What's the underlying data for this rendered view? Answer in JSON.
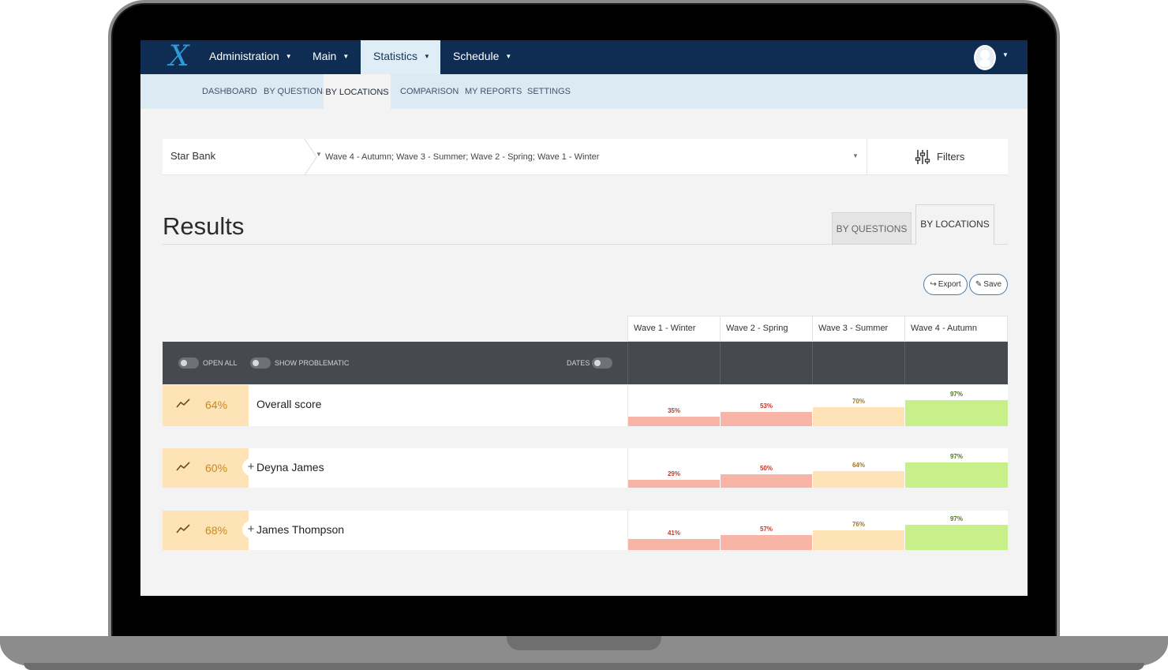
{
  "nav": {
    "logo": "X",
    "items": [
      {
        "label": "Administration",
        "active": false
      },
      {
        "label": "Main",
        "active": false
      },
      {
        "label": "Statistics",
        "active": true
      },
      {
        "label": "Schedule",
        "active": false
      }
    ]
  },
  "subnav": {
    "items": [
      {
        "label": "DASHBOARD",
        "active": false
      },
      {
        "label": "BY QUESTIONS",
        "active": false
      },
      {
        "label": "BY LOCATIONS",
        "active": true
      },
      {
        "label": "COMPARISON",
        "active": false
      },
      {
        "label": "MY REPORTS",
        "active": false
      },
      {
        "label": "SETTINGS",
        "active": false
      }
    ]
  },
  "selector": {
    "bank": "Star Bank",
    "waves": "Wave 4 - Autumn; Wave 3 - Summer; Wave 2 - Spring; Wave 1 - Winter",
    "filters_label": "Filters"
  },
  "results": {
    "title": "Results",
    "tab_questions": "BY QUESTIONS",
    "tab_locations": "BY LOCATIONS",
    "export_label": "Export",
    "save_label": "Save"
  },
  "toolbar": {
    "open_all": "OPEN ALL",
    "show_problematic": "SHOW PROBLEMATIC",
    "dates": "DATES"
  },
  "waves": [
    "Wave 1 - Winter",
    "Wave 2 - Spring",
    "Wave 3 - Summer",
    "Wave 4 - Autumn"
  ],
  "rows": [
    {
      "score": "64%",
      "name": "Overall score",
      "expandable": false,
      "values": [
        35,
        53,
        70,
        97
      ],
      "labels": [
        "35%",
        "53%",
        "70%",
        "97%"
      ]
    },
    {
      "score": "60%",
      "name": "Deyna James",
      "expandable": true,
      "values": [
        29,
        50,
        64,
        97
      ],
      "labels": [
        "29%",
        "50%",
        "64%",
        "97%"
      ]
    },
    {
      "score": "68%",
      "name": "James Thompson",
      "expandable": true,
      "values": [
        41,
        57,
        76,
        97
      ],
      "labels": [
        "41%",
        "57%",
        "76%",
        "97%"
      ]
    }
  ],
  "colors": {
    "nav_bg": "#0f2d52",
    "subnav_bg": "#dbeaf3",
    "score_bg": "#fde3b6",
    "low": "#f9b4a8",
    "low_text": "#c0392b",
    "mid": "#fde3b6",
    "mid_text": "#b37400",
    "high": "#c7f08a",
    "high_text": "#4c7a14"
  }
}
